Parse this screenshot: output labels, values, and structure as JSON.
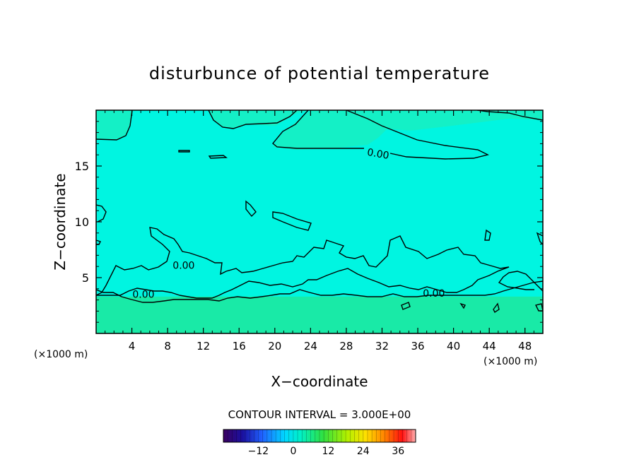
{
  "chart_data": {
    "type": "heatmap",
    "title": "disturbunce of potential temperature",
    "xlabel": "X−coordinate",
    "ylabel": "Z−coordinate",
    "x_unit_left": "(×1000 m)",
    "x_unit_right": "(×1000 m)",
    "xlim": [
      0,
      50
    ],
    "ylim": [
      0,
      20
    ],
    "x_ticks": [
      "4",
      "8",
      "12",
      "16",
      "20",
      "24",
      "28",
      "32",
      "36",
      "40",
      "44",
      "48"
    ],
    "y_ticks": [
      "5",
      "10",
      "15"
    ],
    "field": {
      "background_color": "#00f5e1",
      "upper_band_color": "#14f0c6",
      "lower_layer_color": "#19eaa7",
      "lower_layer_top_z": 3.3
    },
    "contour_labels": [
      {
        "text": "0.00",
        "x": 31.5,
        "z": 15.8
      },
      {
        "text": "0.00",
        "x": 9.8,
        "z": 5.8
      },
      {
        "text": "0.00",
        "x": 5.3,
        "z": 3.2
      },
      {
        "text": "0.00",
        "x": 37.8,
        "z": 3.3
      }
    ],
    "colorbar": {
      "title": "CONTOUR INTERVAL = 3.000E+00",
      "ticks": [
        "−12",
        "0",
        "12",
        "24",
        "36"
      ],
      "tick_values": [
        -12,
        0,
        12,
        24,
        36
      ],
      "range": [
        -24,
        42
      ]
    }
  }
}
